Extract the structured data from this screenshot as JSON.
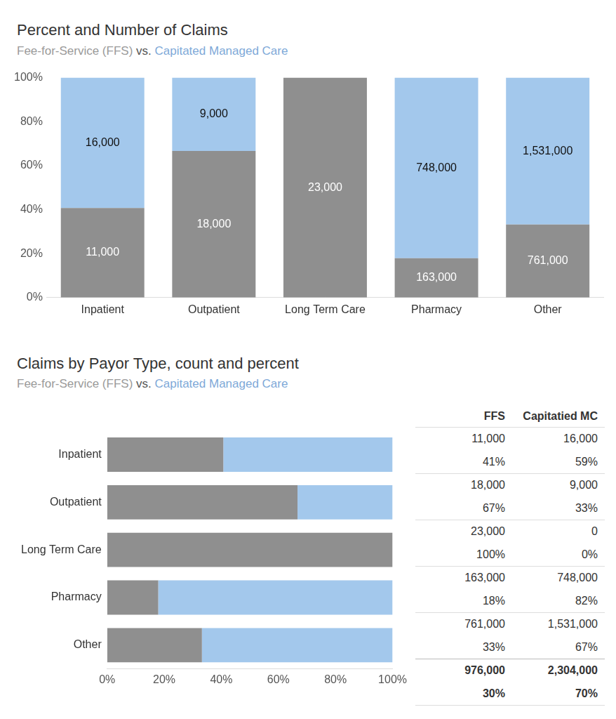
{
  "chart_data": [
    {
      "type": "bar",
      "title": "Percent and Number of Claims",
      "subtitle": "Fee-for-Service (FFS) vs. Capitated Managed Care",
      "categories": [
        "Inpatient",
        "Outpatient",
        "Long Term Care",
        "Pharmacy",
        "Other"
      ],
      "series": [
        {
          "name": "Fee-for-Service (FFS)",
          "color": "#8f8f8f",
          "values": [
            40.7,
            66.7,
            100,
            17.9,
            33.2
          ],
          "count_labels": [
            "11,000",
            "18,000",
            "23,000",
            "163,000",
            "761,000"
          ]
        },
        {
          "name": "Capitated Managed Care",
          "color": "#a3c8ec",
          "values": [
            59.3,
            33.3,
            0,
            82.1,
            66.8
          ],
          "count_labels": [
            "16,000",
            "9,000",
            null,
            "748,000",
            "1,531,000"
          ]
        }
      ],
      "ylim": [
        0,
        100
      ],
      "yticks": [
        {
          "value": 0,
          "label": "0%"
        },
        {
          "value": 20,
          "label": "20%"
        },
        {
          "value": 40,
          "label": "40%"
        },
        {
          "value": 60,
          "label": "60%"
        },
        {
          "value": 80,
          "label": "80%"
        },
        {
          "value": 100,
          "label": "100%"
        }
      ],
      "stacked": true,
      "grid": false
    },
    {
      "type": "bar",
      "title": "Claims by Payor Type, count and percent",
      "subtitle": "Fee-for-Service (FFS) vs. Capitated Managed Care",
      "orientation": "horizontal",
      "categories": [
        "Inpatient",
        "Outpatient",
        "Long Term Care",
        "Pharmacy",
        "Other"
      ],
      "series": [
        {
          "name": "Fee-for-Service (FFS)",
          "color": "#8f8f8f",
          "values": [
            40.7,
            66.7,
            100,
            17.9,
            33.2
          ]
        },
        {
          "name": "Capitated Managed Care",
          "color": "#a3c8ec",
          "values": [
            59.3,
            33.3,
            0,
            82.1,
            66.8
          ]
        }
      ],
      "xlim": [
        0,
        100
      ],
      "xticks": [
        {
          "value": 0,
          "label": "0%"
        },
        {
          "value": 20,
          "label": "20%"
        },
        {
          "value": 40,
          "label": "40%"
        },
        {
          "value": 60,
          "label": "60%"
        },
        {
          "value": 80,
          "label": "80%"
        },
        {
          "value": 100,
          "label": "100%"
        }
      ],
      "stacked": true,
      "grid": false
    }
  ],
  "table": {
    "columns": [
      "FFS",
      "Capitatied MC"
    ],
    "rows": [
      {
        "counts": [
          "11,000",
          "16,000"
        ],
        "percents": [
          "41%",
          "59%"
        ]
      },
      {
        "counts": [
          "18,000",
          "9,000"
        ],
        "percents": [
          "67%",
          "33%"
        ]
      },
      {
        "counts": [
          "23,000",
          "0"
        ],
        "percents": [
          "100%",
          "0%"
        ]
      },
      {
        "counts": [
          "163,000",
          "748,000"
        ],
        "percents": [
          "18%",
          "82%"
        ]
      },
      {
        "counts": [
          "761,000",
          "1,531,000"
        ],
        "percents": [
          "33%",
          "67%"
        ]
      }
    ],
    "total": {
      "counts": [
        "976,000",
        "2,304,000"
      ],
      "percents": [
        "30%",
        "70%"
      ]
    }
  }
}
